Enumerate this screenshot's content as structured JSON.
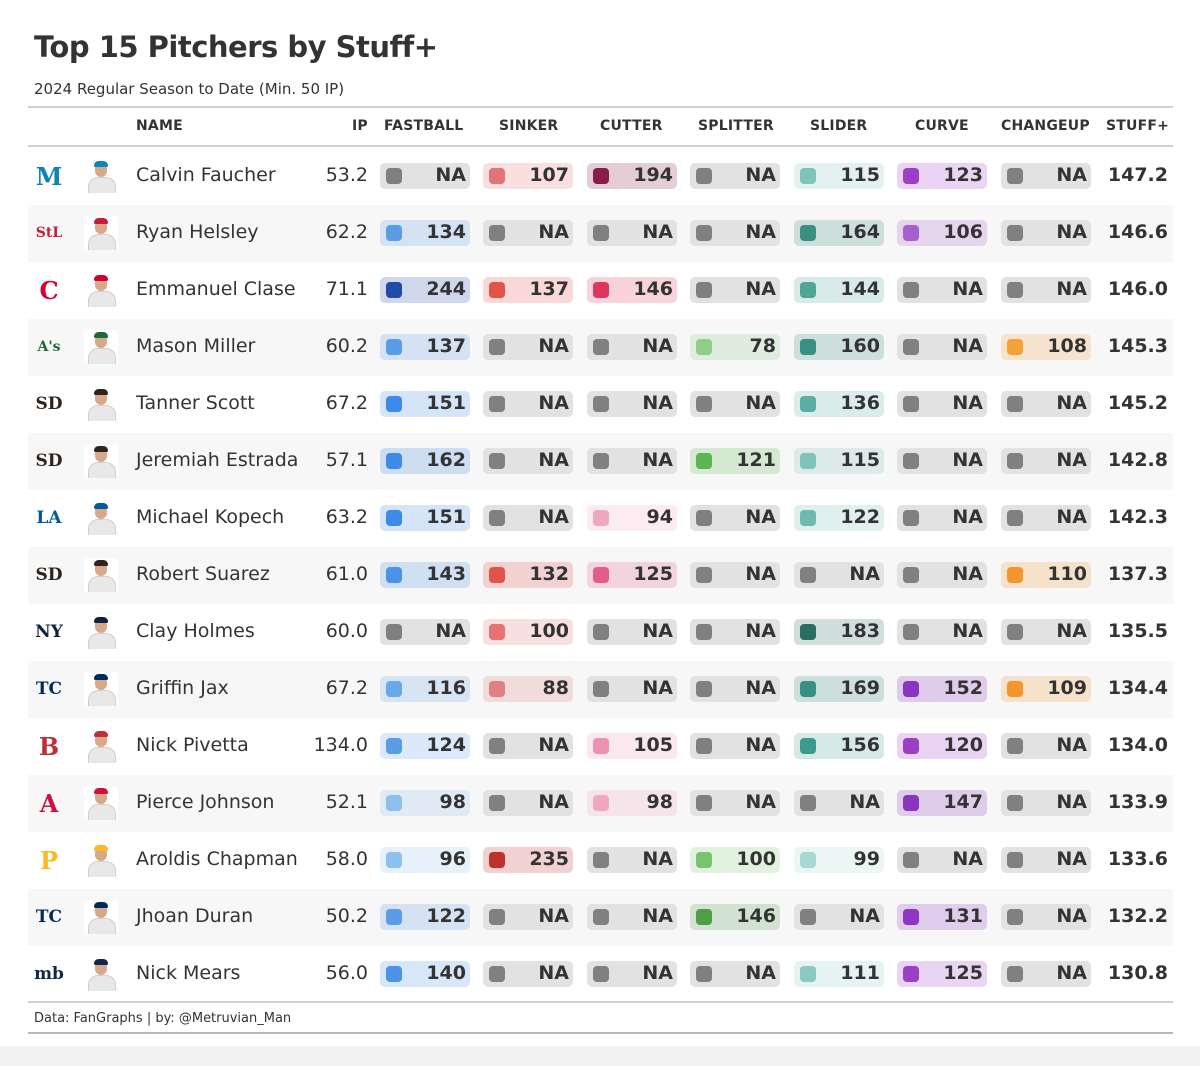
{
  "title": "Top 15 Pitchers by Stuff+",
  "subtitle": "2024 Regular Season to Date (Min. 50 IP)",
  "footer": "Data: FanGraphs | by: @Metruvian_Man",
  "na_color": "#808080",
  "columns": {
    "name": "NAME",
    "ip": "IP",
    "fastball": "FASTBALL",
    "sinker": "SINKER",
    "cutter": "CUTTER",
    "splitter": "SPLITTER",
    "slider": "SLIDER",
    "curve": "CURVE",
    "changeup": "CHANGEUP",
    "stuff": "STUFF+"
  },
  "chart_data": {
    "type": "table",
    "title": "Top 15 Pitchers by Stuff+",
    "subtitle": "2024 Regular Season to Date (Min. 50 IP)",
    "pitch_types": [
      "fastball",
      "sinker",
      "cutter",
      "splitter",
      "slider",
      "curve",
      "changeup"
    ],
    "rows": [
      {
        "team": "Marlins",
        "logo": "marlins-logo",
        "logo_text": "M",
        "logo_color": "#0e86b3",
        "name": "Calvin Faucher",
        "ip": "53.2",
        "fastball": {
          "v": "NA",
          "c": "#808080"
        },
        "sinker": {
          "v": "107",
          "c": "#e57373"
        },
        "cutter": {
          "v": "194",
          "c": "#8a1c4a"
        },
        "splitter": {
          "v": "NA",
          "c": "#808080"
        },
        "slider": {
          "v": "115",
          "c": "#7fc4bb"
        },
        "curve": {
          "v": "123",
          "c": "#9c3fc7"
        },
        "changeup": {
          "v": "NA",
          "c": "#808080"
        },
        "stuff": "147.2"
      },
      {
        "team": "Cardinals",
        "logo": "cardinals-logo",
        "logo_text": "StL",
        "logo_color": "#c41e3a",
        "name": "Ryan Helsley",
        "ip": "62.2",
        "fastball": {
          "v": "134",
          "c": "#5a9de6"
        },
        "sinker": {
          "v": "NA",
          "c": "#808080"
        },
        "cutter": {
          "v": "NA",
          "c": "#808080"
        },
        "splitter": {
          "v": "NA",
          "c": "#808080"
        },
        "slider": {
          "v": "164",
          "c": "#3a8f83"
        },
        "curve": {
          "v": "106",
          "c": "#a55fcf"
        },
        "changeup": {
          "v": "NA",
          "c": "#808080"
        },
        "stuff": "146.6"
      },
      {
        "team": "Guardians",
        "logo": "guardians-logo",
        "logo_text": "C",
        "logo_color": "#d50032",
        "name": "Emmanuel Clase",
        "ip": "71.1",
        "fastball": {
          "v": "244",
          "c": "#1f4aa8"
        },
        "sinker": {
          "v": "137",
          "c": "#e35247"
        },
        "cutter": {
          "v": "146",
          "c": "#e0365e"
        },
        "splitter": {
          "v": "NA",
          "c": "#808080"
        },
        "slider": {
          "v": "144",
          "c": "#4ea697"
        },
        "curve": {
          "v": "NA",
          "c": "#808080"
        },
        "changeup": {
          "v": "NA",
          "c": "#808080"
        },
        "stuff": "146.0"
      },
      {
        "team": "Athletics",
        "logo": "athletics-logo",
        "logo_text": "A's",
        "logo_color": "#1a6a3a",
        "name": "Mason Miller",
        "ip": "60.2",
        "fastball": {
          "v": "137",
          "c": "#5a9de6"
        },
        "sinker": {
          "v": "NA",
          "c": "#808080"
        },
        "cutter": {
          "v": "NA",
          "c": "#808080"
        },
        "splitter": {
          "v": "78",
          "c": "#8fcf8a"
        },
        "slider": {
          "v": "160",
          "c": "#3a8f83"
        },
        "curve": {
          "v": "NA",
          "c": "#808080"
        },
        "changeup": {
          "v": "108",
          "c": "#f5a03a"
        },
        "stuff": "145.3"
      },
      {
        "team": "Padres",
        "logo": "padres-logo",
        "logo_text": "SD",
        "logo_color": "#2f241d",
        "name": "Tanner Scott",
        "ip": "67.2",
        "fastball": {
          "v": "151",
          "c": "#3d8ae8"
        },
        "sinker": {
          "v": "NA",
          "c": "#808080"
        },
        "cutter": {
          "v": "NA",
          "c": "#808080"
        },
        "splitter": {
          "v": "NA",
          "c": "#808080"
        },
        "slider": {
          "v": "136",
          "c": "#5aaea2"
        },
        "curve": {
          "v": "NA",
          "c": "#808080"
        },
        "changeup": {
          "v": "NA",
          "c": "#808080"
        },
        "stuff": "145.2"
      },
      {
        "team": "Padres",
        "logo": "padres-logo",
        "logo_text": "SD",
        "logo_color": "#2f241d",
        "name": "Jeremiah Estrada",
        "ip": "57.1",
        "fastball": {
          "v": "162",
          "c": "#3d8ae8"
        },
        "sinker": {
          "v": "NA",
          "c": "#808080"
        },
        "cutter": {
          "v": "NA",
          "c": "#808080"
        },
        "splitter": {
          "v": "121",
          "c": "#5bb553"
        },
        "slider": {
          "v": "115",
          "c": "#7fc4bb"
        },
        "curve": {
          "v": "NA",
          "c": "#808080"
        },
        "changeup": {
          "v": "NA",
          "c": "#808080"
        },
        "stuff": "142.8"
      },
      {
        "team": "Dodgers",
        "logo": "dodgers-logo",
        "logo_text": "LA",
        "logo_color": "#005a9c",
        "name": "Michael Kopech",
        "ip": "63.2",
        "fastball": {
          "v": "151",
          "c": "#3d8ae8"
        },
        "sinker": {
          "v": "NA",
          "c": "#808080"
        },
        "cutter": {
          "v": "94",
          "c": "#f0a8c0"
        },
        "splitter": {
          "v": "NA",
          "c": "#808080"
        },
        "slider": {
          "v": "122",
          "c": "#6cbab0"
        },
        "curve": {
          "v": "NA",
          "c": "#808080"
        },
        "changeup": {
          "v": "NA",
          "c": "#808080"
        },
        "stuff": "142.3"
      },
      {
        "team": "Padres",
        "logo": "padres-logo",
        "logo_text": "SD",
        "logo_color": "#2f241d",
        "name": "Robert Suarez",
        "ip": "61.0",
        "fastball": {
          "v": "143",
          "c": "#4a93e8"
        },
        "sinker": {
          "v": "132",
          "c": "#e35247"
        },
        "cutter": {
          "v": "125",
          "c": "#e35d8a"
        },
        "splitter": {
          "v": "NA",
          "c": "#808080"
        },
        "slider": {
          "v": "NA",
          "c": "#808080"
        },
        "curve": {
          "v": "NA",
          "c": "#808080"
        },
        "changeup": {
          "v": "110",
          "c": "#f5952e"
        },
        "stuff": "137.3"
      },
      {
        "team": "Yankees",
        "logo": "yankees-logo",
        "logo_text": "NY",
        "logo_color": "#0c2340",
        "name": "Clay Holmes",
        "ip": "60.0",
        "fastball": {
          "v": "NA",
          "c": "#808080"
        },
        "sinker": {
          "v": "100",
          "c": "#e57373"
        },
        "cutter": {
          "v": "NA",
          "c": "#808080"
        },
        "splitter": {
          "v": "NA",
          "c": "#808080"
        },
        "slider": {
          "v": "183",
          "c": "#2a6e63"
        },
        "curve": {
          "v": "NA",
          "c": "#808080"
        },
        "changeup": {
          "v": "NA",
          "c": "#808080"
        },
        "stuff": "135.5"
      },
      {
        "team": "Twins",
        "logo": "twins-logo",
        "logo_text": "TC",
        "logo_color": "#002b5c",
        "name": "Griffin Jax",
        "ip": "67.2",
        "fastball": {
          "v": "116",
          "c": "#69a8ea"
        },
        "sinker": {
          "v": "88",
          "c": "#e08080"
        },
        "cutter": {
          "v": "NA",
          "c": "#808080"
        },
        "splitter": {
          "v": "NA",
          "c": "#808080"
        },
        "slider": {
          "v": "169",
          "c": "#3a8f83"
        },
        "curve": {
          "v": "152",
          "c": "#8a35c0"
        },
        "changeup": {
          "v": "109",
          "c": "#f5952e"
        },
        "stuff": "134.4"
      },
      {
        "team": "Red Sox",
        "logo": "redsox-logo",
        "logo_text": "B",
        "logo_color": "#bd3039",
        "name": "Nick Pivetta",
        "ip": "134.0",
        "fastball": {
          "v": "124",
          "c": "#5a9de6"
        },
        "sinker": {
          "v": "NA",
          "c": "#808080"
        },
        "cutter": {
          "v": "105",
          "c": "#ee90b0"
        },
        "splitter": {
          "v": "NA",
          "c": "#808080"
        },
        "slider": {
          "v": "156",
          "c": "#3e9a8d"
        },
        "curve": {
          "v": "120",
          "c": "#9c3fc7"
        },
        "changeup": {
          "v": "NA",
          "c": "#808080"
        },
        "stuff": "134.0"
      },
      {
        "team": "Braves",
        "logo": "braves-logo",
        "logo_text": "A",
        "logo_color": "#ce1141",
        "name": "Pierce Johnson",
        "ip": "52.1",
        "fastball": {
          "v": "98",
          "c": "#8ec0ef"
        },
        "sinker": {
          "v": "NA",
          "c": "#808080"
        },
        "cutter": {
          "v": "98",
          "c": "#f0a8c0"
        },
        "splitter": {
          "v": "NA",
          "c": "#808080"
        },
        "slider": {
          "v": "NA",
          "c": "#808080"
        },
        "curve": {
          "v": "147",
          "c": "#8a35c0"
        },
        "changeup": {
          "v": "NA",
          "c": "#808080"
        },
        "stuff": "133.9"
      },
      {
        "team": "Pirates",
        "logo": "pirates-logo",
        "logo_text": "P",
        "logo_color": "#fdb827",
        "name": "Aroldis Chapman",
        "ip": "58.0",
        "fastball": {
          "v": "96",
          "c": "#8ec0ef"
        },
        "sinker": {
          "v": "235",
          "c": "#c0302a"
        },
        "cutter": {
          "v": "NA",
          "c": "#808080"
        },
        "splitter": {
          "v": "100",
          "c": "#76c46e"
        },
        "slider": {
          "v": "99",
          "c": "#a8d8d2"
        },
        "curve": {
          "v": "NA",
          "c": "#808080"
        },
        "changeup": {
          "v": "NA",
          "c": "#808080"
        },
        "stuff": "133.6"
      },
      {
        "team": "Twins",
        "logo": "twins-logo",
        "logo_text": "TC",
        "logo_color": "#002b5c",
        "name": "Jhoan Duran",
        "ip": "50.2",
        "fastball": {
          "v": "122",
          "c": "#5a9de6"
        },
        "sinker": {
          "v": "NA",
          "c": "#808080"
        },
        "cutter": {
          "v": "NA",
          "c": "#808080"
        },
        "splitter": {
          "v": "146",
          "c": "#4f9e48"
        },
        "slider": {
          "v": "NA",
          "c": "#808080"
        },
        "curve": {
          "v": "131",
          "c": "#9035c7"
        },
        "changeup": {
          "v": "NA",
          "c": "#808080"
        },
        "stuff": "132.2"
      },
      {
        "team": "Brewers",
        "logo": "brewers-logo",
        "logo_text": "mb",
        "logo_color": "#12284b",
        "name": "Nick Mears",
        "ip": "56.0",
        "fastball": {
          "v": "140",
          "c": "#4a93e8"
        },
        "sinker": {
          "v": "NA",
          "c": "#808080"
        },
        "cutter": {
          "v": "NA",
          "c": "#808080"
        },
        "splitter": {
          "v": "NA",
          "c": "#808080"
        },
        "slider": {
          "v": "111",
          "c": "#8acac2"
        },
        "curve": {
          "v": "125",
          "c": "#9c3fc7"
        },
        "changeup": {
          "v": "NA",
          "c": "#808080"
        },
        "stuff": "130.8"
      }
    ]
  }
}
